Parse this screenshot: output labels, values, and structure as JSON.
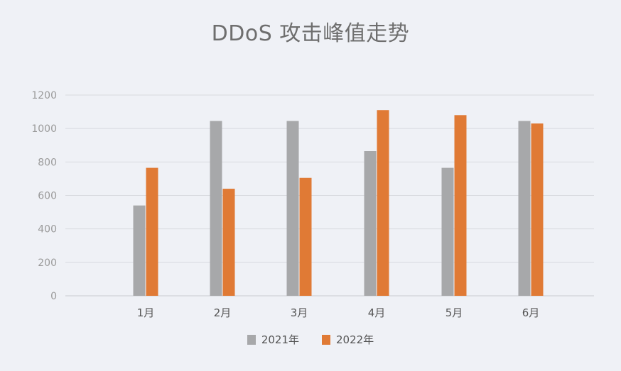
{
  "chart_data": {
    "type": "bar",
    "title": "DDoS 攻击峰值走势",
    "categories": [
      "1月",
      "2月",
      "3月",
      "4月",
      "5月",
      "6月"
    ],
    "series": [
      {
        "name": "2021年",
        "color": "#a7a8aa",
        "values": [
          540,
          1045,
          1045,
          865,
          765,
          1045
        ]
      },
      {
        "name": "2022年",
        "color": "#e07a35",
        "values": [
          765,
          640,
          705,
          1110,
          1080,
          1030
        ]
      }
    ],
    "y_ticks": [
      "0",
      "200",
      "400",
      "600",
      "800",
      "1000",
      "1200"
    ],
    "ylim": [
      0,
      1200
    ],
    "grid": true,
    "legend_position": "bottom"
  }
}
